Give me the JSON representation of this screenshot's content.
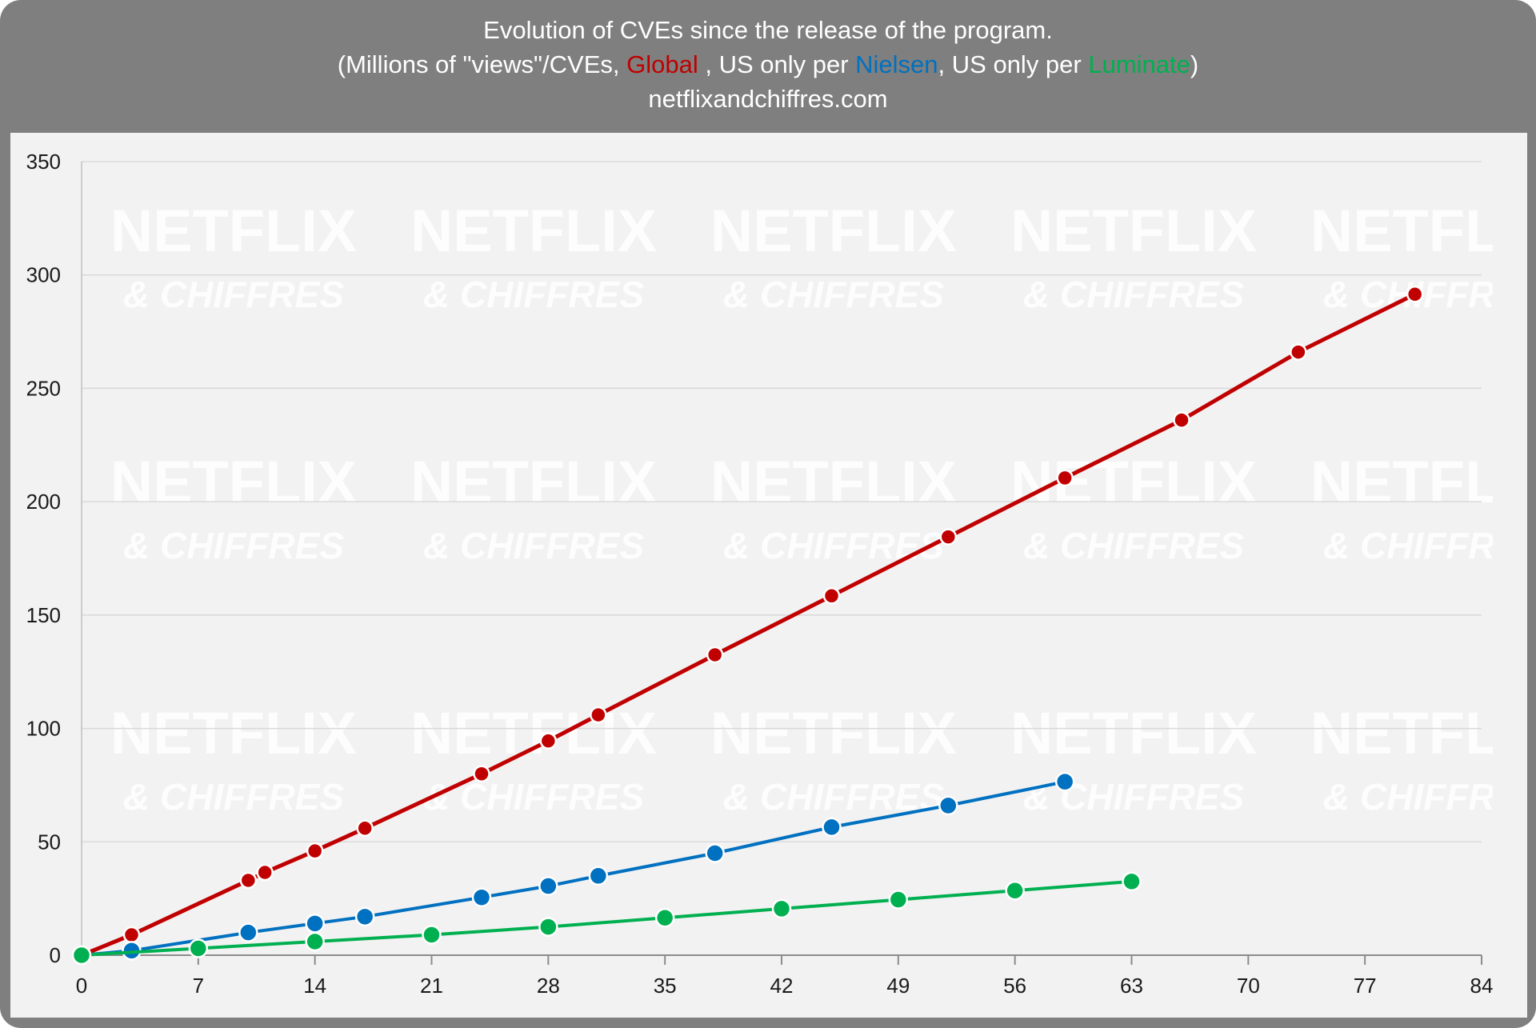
{
  "header": {
    "title": "Evolution of CVEs since the release of the program.",
    "subtitle_prefix": "(Millions of \"views\"/CVEs, ",
    "subtitle_global": "Global",
    "subtitle_mid1": " , US only per ",
    "subtitle_nielsen": "Nielsen",
    "subtitle_mid2": ", US only per ",
    "subtitle_luminate": "Luminate",
    "subtitle_suffix": ")",
    "website": "netflixandchiffres.com"
  },
  "watermark": {
    "line1": "NETFLIX",
    "line2": "& CHIFFRES"
  },
  "colors": {
    "global": "#c00000",
    "nielsen": "#0070c0",
    "luminate": "#00b050",
    "header_bg": "#7f7f7f",
    "plot_bg": "#f2f2f2"
  },
  "chart_data": {
    "type": "line",
    "title": "Evolution of CVEs since the release of the program.",
    "xlabel": "",
    "ylabel": "",
    "xlim": [
      0,
      84
    ],
    "ylim": [
      0,
      350
    ],
    "xticks": [
      0,
      7,
      14,
      21,
      28,
      35,
      42,
      49,
      56,
      63,
      70,
      77,
      84
    ],
    "yticks": [
      0,
      50,
      100,
      150,
      200,
      250,
      300,
      350
    ],
    "grid": true,
    "series": [
      {
        "name": "Global",
        "color": "#c00000",
        "x": [
          0,
          3,
          10,
          11,
          14,
          17,
          24,
          28,
          31,
          38,
          45,
          52,
          59,
          66,
          73,
          80
        ],
        "y": [
          0,
          9,
          33,
          36.5,
          46,
          56,
          80,
          94.5,
          106,
          132.5,
          158.5,
          184.5,
          210.5,
          236,
          266,
          291.5
        ]
      },
      {
        "name": "Nielsen",
        "color": "#0070c0",
        "x": [
          0,
          3,
          10,
          14,
          17,
          24,
          28,
          31,
          38,
          45,
          52,
          59
        ],
        "y": [
          0,
          2,
          10,
          14,
          17,
          25.5,
          30.5,
          35,
          45,
          56.5,
          66,
          76.5
        ]
      },
      {
        "name": "Luminate",
        "color": "#00b050",
        "x": [
          0,
          7,
          14,
          21,
          28,
          35,
          42,
          49,
          56,
          63
        ],
        "y": [
          0,
          3,
          6,
          9,
          12.5,
          16.5,
          20.5,
          24.5,
          28.5,
          32.5
        ]
      }
    ]
  }
}
